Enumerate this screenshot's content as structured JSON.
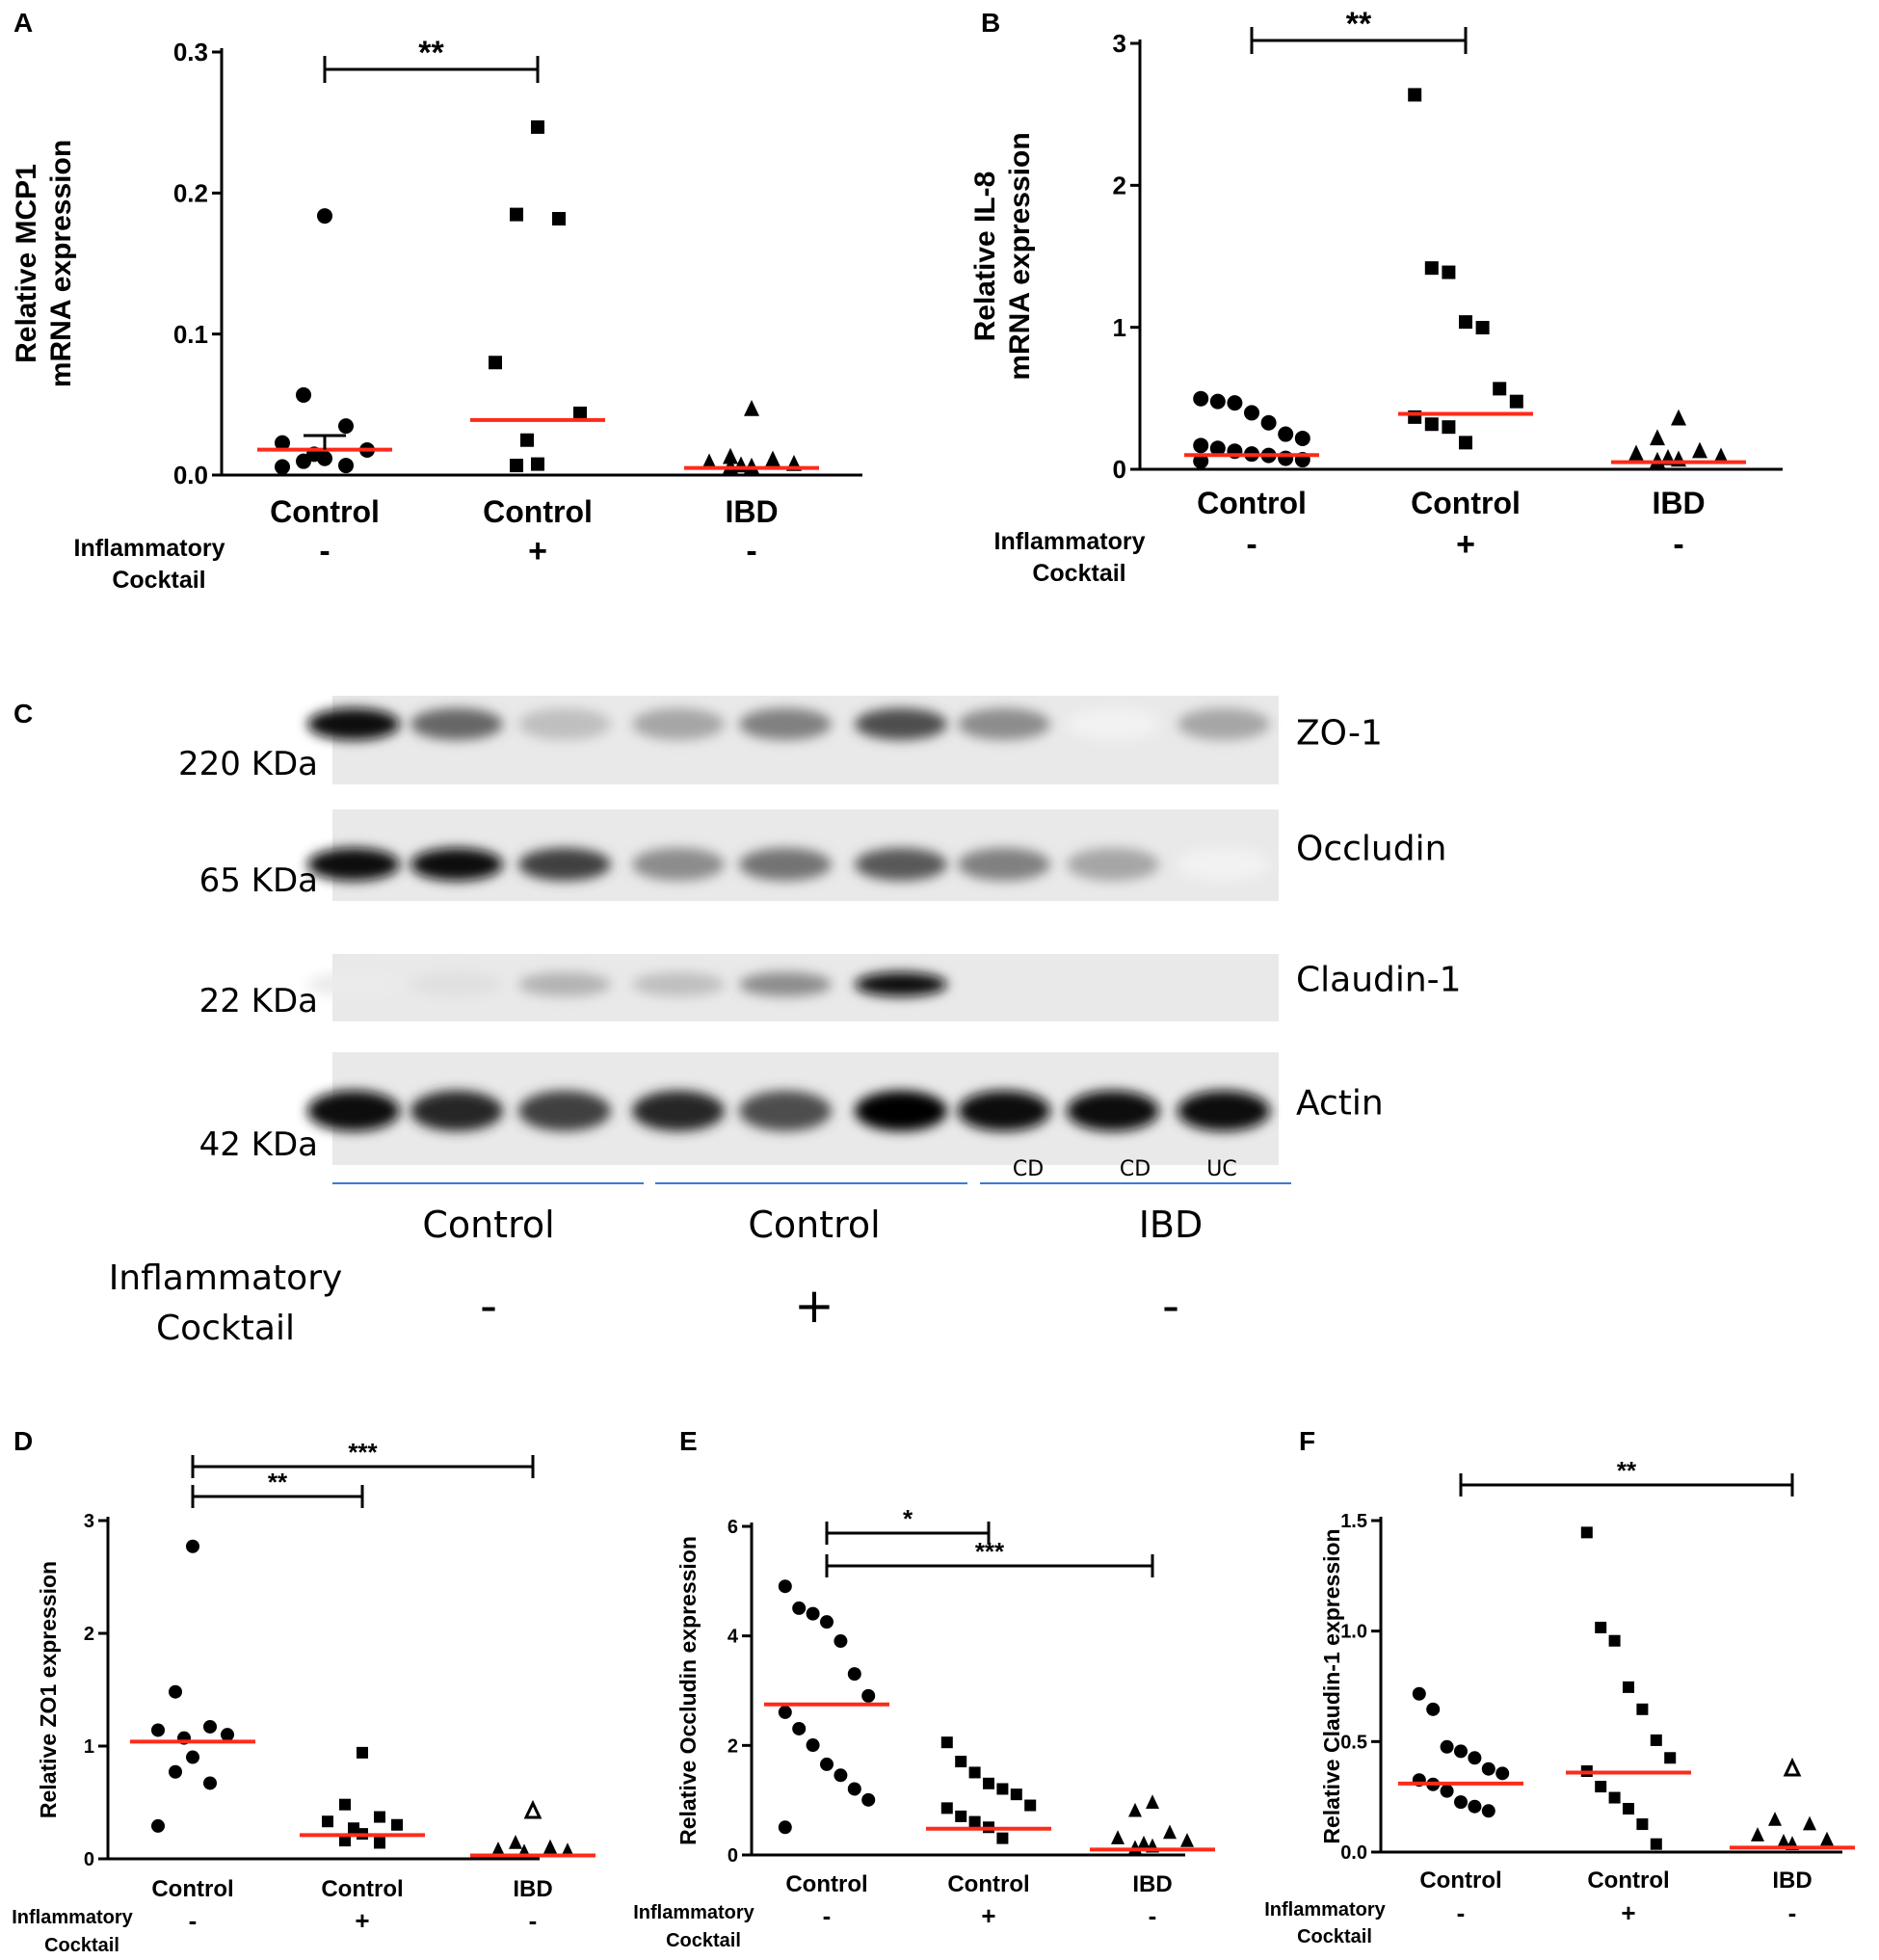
{
  "panels": [
    {
      "id": "A",
      "ylabel": [
        "Relative MCP1",
        "mRNA expression"
      ],
      "yticks": [
        "0.0",
        "0.1",
        "0.2",
        "0.3"
      ],
      "categories": [
        "Control",
        "Control",
        "IBD"
      ],
      "treatment_label": [
        "Inflammatory",
        "Cocktail"
      ],
      "treatment": [
        "-",
        "+",
        "-"
      ],
      "significance": [
        {
          "from": 0,
          "to": 1,
          "label": "**"
        }
      ]
    },
    {
      "id": "B",
      "ylabel": [
        "Relative IL-8",
        "mRNA expression"
      ],
      "yticks": [
        "0",
        "1",
        "2",
        "3"
      ],
      "categories": [
        "Control",
        "Control",
        "IBD"
      ],
      "treatment_label": [
        "Inflammatory",
        "Cocktail"
      ],
      "treatment": [
        "-",
        "+",
        "-"
      ],
      "significance": [
        {
          "from": 0,
          "to": 1,
          "label": "**"
        }
      ]
    },
    {
      "id": "D",
      "ylabel": [
        "Relative ZO1 expression"
      ],
      "yticks": [
        "0",
        "1",
        "2",
        "3"
      ],
      "categories": [
        "Control",
        "Control",
        "IBD"
      ],
      "treatment_label": [
        "Inflammatory",
        "Cocktail"
      ],
      "treatment": [
        "-",
        "+",
        "-"
      ],
      "significance": [
        {
          "from": 0,
          "to": 1,
          "label": "**"
        },
        {
          "from": 0,
          "to": 2,
          "label": "***"
        }
      ]
    },
    {
      "id": "E",
      "ylabel": [
        "Relative Occludin expression"
      ],
      "yticks": [
        "0",
        "2",
        "4",
        "6"
      ],
      "categories": [
        "Control",
        "Control",
        "IBD"
      ],
      "treatment_label": [
        "Inflammatory",
        "Cocktail"
      ],
      "treatment": [
        "-",
        "+",
        "-"
      ],
      "significance": [
        {
          "from": 0,
          "to": 1,
          "label": "*"
        },
        {
          "from": 0,
          "to": 2,
          "label": "***"
        }
      ]
    },
    {
      "id": "F",
      "ylabel": [
        "Relative Claudin-1 expression"
      ],
      "yticks": [
        "0.0",
        "0.5",
        "1.0",
        "1.5"
      ],
      "categories": [
        "Control",
        "Control",
        "IBD"
      ],
      "treatment_label": [
        "Inflammatory",
        "Cocktail"
      ],
      "treatment": [
        "-",
        "+",
        "-"
      ],
      "significance": [
        {
          "from": 0,
          "to": 2,
          "label": "**"
        }
      ]
    }
  ],
  "blot": {
    "id": "C",
    "rows": [
      {
        "kda": "220 KDa",
        "protein": "ZO-1"
      },
      {
        "kda": "65 KDa",
        "protein": "Occludin"
      },
      {
        "kda": "22 KDa",
        "protein": "Claudin-1"
      },
      {
        "kda": "42 KDa",
        "protein": "Actin"
      }
    ],
    "lane_labels": [
      "CD",
      "CD",
      "UC"
    ],
    "groups": [
      "Control",
      "Control",
      "IBD"
    ],
    "treatment_label": [
      "Inflammatory",
      "Cocktail"
    ],
    "treatment": [
      "-",
      "+",
      "-"
    ]
  },
  "chart_data": [
    {
      "type": "scatter",
      "panel": "A",
      "xlabel": "",
      "ylabel": "Relative MCP1 mRNA expression",
      "categories": [
        "Control",
        "Control",
        "IBD"
      ],
      "ylim": [
        0,
        0.3
      ],
      "series": [
        {
          "values": [
            0.179,
            0.052,
            0.03,
            0.018,
            0.013,
            0.01,
            0.007,
            0.005,
            0.002,
            0.001
          ],
          "marker": "circle",
          "mean": 0.018,
          "sem": 0.01
        },
        {
          "values": [
            0.242,
            0.18,
            0.177,
            0.075,
            0.039,
            0.02,
            0.003,
            0.002
          ],
          "marker": "square",
          "mean": 0.039
        },
        {
          "values": [
            0.042,
            0.008,
            0.006,
            0.004,
            0.003,
            0.002,
            0.001,
            0.001
          ],
          "marker": "triangle",
          "mean": 0.005
        }
      ],
      "mean_line_color": "#ff2a1a"
    },
    {
      "type": "scatter",
      "panel": "B",
      "xlabel": "",
      "ylabel": "Relative IL-8 mRNA expression",
      "categories": [
        "Control",
        "Control",
        "IBD"
      ],
      "ylim": [
        0,
        3
      ],
      "series": [
        {
          "values": [
            0.45,
            0.43,
            0.42,
            0.35,
            0.28,
            0.2,
            0.17,
            0.12,
            0.1,
            0.08,
            0.06,
            0.05,
            0.03,
            0.02,
            0.01
          ],
          "marker": "circle",
          "mean": 0.1
        },
        {
          "values": [
            2.59,
            1.37,
            1.34,
            0.99,
            0.95,
            0.52,
            0.43,
            0.32,
            0.27,
            0.25,
            0.14
          ],
          "marker": "square",
          "mean": 0.39
        },
        {
          "values": [
            0.31,
            0.17,
            0.08,
            0.06,
            0.04,
            0.03,
            0.02,
            0.01
          ],
          "marker": "triangle",
          "mean": 0.05
        }
      ],
      "mean_line_color": "#ff2a1a"
    },
    {
      "type": "scatter",
      "panel": "D",
      "xlabel": "",
      "ylabel": "Relative ZO1 expression",
      "categories": [
        "Control",
        "Control",
        "IBD"
      ],
      "ylim": [
        0,
        3
      ],
      "series": [
        {
          "values": [
            2.72,
            1.43,
            1.12,
            1.09,
            1.05,
            1.02,
            0.85,
            0.72,
            0.62,
            0.24
          ],
          "marker": "circle",
          "mean": 1.04
        },
        {
          "values": [
            0.89,
            0.43,
            0.32,
            0.28,
            0.25,
            0.22,
            0.17,
            0.11,
            0.09
          ],
          "marker": "square",
          "mean": 0.21
        },
        {
          "values": [
            0.37,
            0.09,
            0.05,
            0.03,
            0.02,
            0.01
          ],
          "marker": "triangle",
          "mean": 0.03,
          "open_marker_value": 0.37
        }
      ],
      "mean_line_color": "#ff2a1a"
    },
    {
      "type": "scatter",
      "panel": "E",
      "xlabel": "",
      "ylabel": "Relative Occludin expression",
      "categories": [
        "Control",
        "Control",
        "IBD"
      ],
      "ylim": [
        0,
        6
      ],
      "series": [
        {
          "values": [
            4.8,
            4.4,
            4.3,
            4.15,
            3.8,
            3.2,
            2.8,
            2.5,
            2.2,
            1.9,
            1.55,
            1.35,
            1.1,
            0.9,
            0.4
          ],
          "marker": "circle",
          "mean": 2.75
        },
        {
          "values": [
            1.95,
            1.6,
            1.4,
            1.2,
            1.1,
            1.0,
            0.8,
            0.75,
            0.6,
            0.5,
            0.4,
            0.2
          ],
          "marker": "square",
          "mean": 0.48
        },
        {
          "values": [
            0.85,
            0.7,
            0.3,
            0.2,
            0.15,
            0.1,
            0.05,
            0.02
          ],
          "marker": "triangle",
          "mean": 0.1
        }
      ],
      "mean_line_color": "#ff2a1a"
    },
    {
      "type": "scatter",
      "panel": "F",
      "xlabel": "",
      "ylabel": "Relative Claudin-1 expression",
      "categories": [
        "Control",
        "Control",
        "IBD"
      ],
      "ylim": [
        0,
        1.5
      ],
      "series": [
        {
          "values": [
            0.69,
            0.62,
            0.45,
            0.43,
            0.4,
            0.35,
            0.33,
            0.3,
            0.28,
            0.25,
            0.2,
            0.18,
            0.16
          ],
          "marker": "circle",
          "mean": 0.31
        },
        {
          "values": [
            1.42,
            0.99,
            0.93,
            0.72,
            0.62,
            0.48,
            0.4,
            0.34,
            0.27,
            0.22,
            0.17,
            0.1,
            0.01
          ],
          "marker": "square",
          "mean": 0.36
        },
        {
          "values": [
            0.35,
            0.12,
            0.1,
            0.05,
            0.03,
            0.02,
            0.01
          ],
          "marker": "triangle",
          "mean": 0.02,
          "open_marker_value": 0.35
        }
      ],
      "mean_line_color": "#ff2a1a"
    }
  ]
}
